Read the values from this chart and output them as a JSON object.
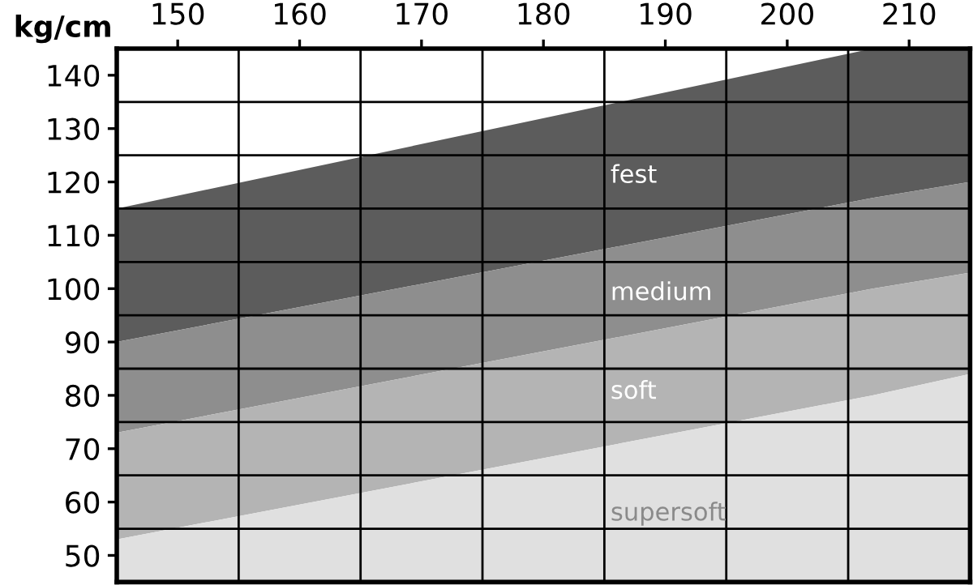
{
  "chart_data": {
    "type": "area",
    "ylabel": "kg/cm",
    "x": [
      145,
      207,
      215
    ],
    "series": [
      {
        "name": "fest",
        "color": "#5c5c5c",
        "values": [
          115,
          145,
          145
        ]
      },
      {
        "name": "medium",
        "color": "#8e8e8e",
        "values": [
          90,
          117,
          120
        ]
      },
      {
        "name": "soft",
        "color": "#b4b4b4",
        "values": [
          73,
          100,
          103
        ]
      },
      {
        "name": "supersoft",
        "color": "#e0e0e0",
        "values": [
          53,
          80,
          84
        ]
      }
    ],
    "xlim": [
      145,
      215
    ],
    "ylim": [
      45,
      145
    ],
    "xticks": [
      {
        "value": 145,
        "label": null
      },
      150,
      {
        "value": 155,
        "label": null
      },
      160,
      {
        "value": 165,
        "label": null
      },
      170,
      {
        "value": 175,
        "label": null
      },
      180,
      {
        "value": 185,
        "label": null
      },
      190,
      {
        "value": 195,
        "label": null
      },
      200,
      {
        "value": 205,
        "label": null
      },
      210,
      {
        "value": 215,
        "label": null
      }
    ],
    "yticks": [
      {
        "value": 45,
        "label": null
      },
      50,
      {
        "value": 55,
        "label": null
      },
      60,
      {
        "value": 65,
        "label": null
      },
      70,
      {
        "value": 75,
        "label": null
      },
      80,
      {
        "value": 85,
        "label": null
      },
      90,
      {
        "value": 95,
        "label": null
      },
      100,
      {
        "value": 105,
        "label": null
      },
      110,
      {
        "value": 115,
        "label": null
      },
      120,
      {
        "value": 125,
        "label": null
      },
      130,
      {
        "value": 135,
        "label": null
      },
      140,
      {
        "value": 145,
        "label": null
      }
    ],
    "grid": true
  }
}
